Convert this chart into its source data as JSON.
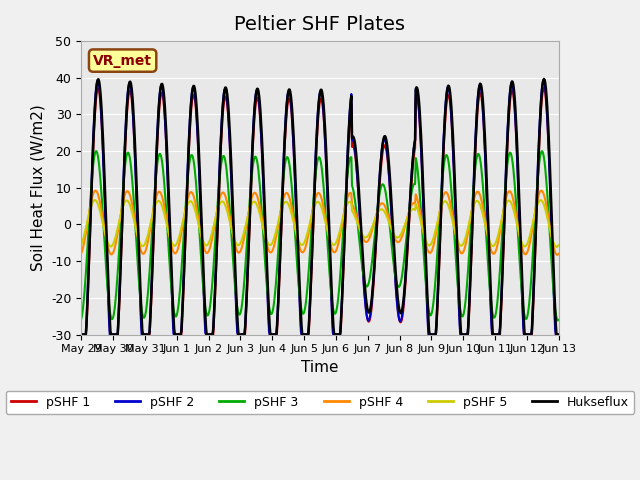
{
  "title": "Peltier SHF Plates",
  "ylabel": "Soil Heat Flux (W/m2)",
  "xlabel": "Time",
  "ylim": [
    -30,
    50
  ],
  "xlim": [
    0,
    15
  ],
  "background_color": "#e8e8e8",
  "fig_color": "#f0f0f0",
  "annotation_text": "VR_met",
  "annotation_bg": "#ffff99",
  "annotation_border": "#8b4513",
  "annotation_text_color": "#8b0000",
  "series_names": [
    "pSHF 1",
    "pSHF 2",
    "pSHF 3",
    "pSHF 4",
    "pSHF 5",
    "Hukseflux"
  ],
  "series_colors": [
    "#cc0000",
    "#0000cc",
    "#00aa00",
    "#ff8800",
    "#cccc00",
    "#000000"
  ],
  "series_lw": [
    1.5,
    1.5,
    1.5,
    1.5,
    1.5,
    1.8
  ],
  "xtick_positions": [
    0,
    1,
    2,
    3,
    4,
    5,
    6,
    7,
    8,
    9,
    10,
    11,
    12,
    13,
    14,
    15
  ],
  "xtick_labels": [
    "May 29",
    "May 30",
    "May 31",
    "Jun 1",
    "Jun 2",
    "Jun 3",
    "Jun 4",
    "Jun 5",
    "Jun 6",
    "Jun 7",
    "Jun 8",
    "Jun 9",
    "Jun 10",
    "Jun 11",
    "Jun 12",
    "Jun 13"
  ],
  "ytick_positions": [
    -30,
    -20,
    -10,
    0,
    10,
    20,
    30,
    40,
    50
  ],
  "grid_color": "#ffffff",
  "title_fontsize": 14,
  "axis_label_fontsize": 11,
  "tick_fontsize": 9,
  "xtick_fontsize": 8,
  "legend_fontsize": 9
}
